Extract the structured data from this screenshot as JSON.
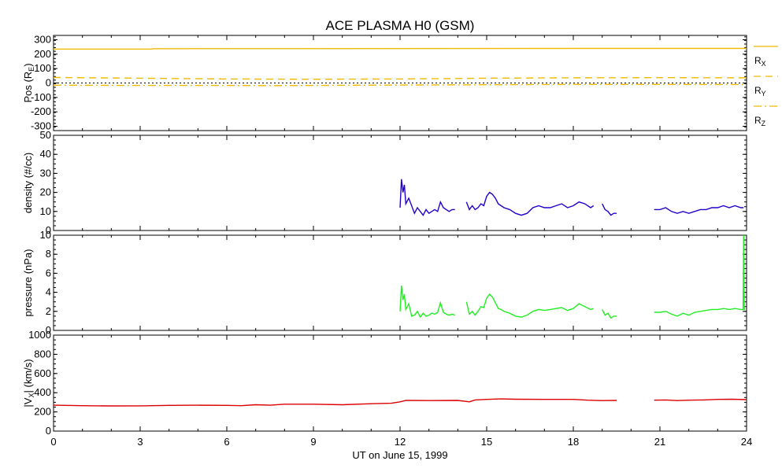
{
  "chart_data": {
    "title": "ACE PLASMA H0 (GSM)",
    "xlabel": "UT on June 15, 1999",
    "type": "line",
    "x_unit": "hours UT",
    "xlim": [
      0,
      24
    ],
    "xticks": [
      "0",
      "3",
      "6",
      "9",
      "12",
      "15",
      "18",
      "21",
      "24"
    ],
    "panels": [
      {
        "id": "position",
        "ylabel": {
          "main": "Pos (R",
          "sub": "E",
          "close": ")"
        },
        "ylim": [
          -330,
          330
        ],
        "yticks": [
          "300",
          "200",
          "100",
          "0",
          "-100",
          "-200",
          "-300"
        ],
        "legend": [
          {
            "base": "R",
            "sub": "X",
            "style": "solid",
            "color": "#f0b800"
          },
          {
            "base": "R",
            "sub": "Y",
            "style": "dashed",
            "color": "#f0b800"
          },
          {
            "base": "R",
            "sub": "Z",
            "style": "dashdot",
            "color": "#f0b800"
          }
        ],
        "series": [
          {
            "name": "RX",
            "color": "#f0b800",
            "style": "solid",
            "x": [
              0,
              3.4,
              3.45,
              12,
              18.5,
              24
            ],
            "y": [
              235,
              235,
              238,
              239,
              240,
              240
            ]
          },
          {
            "name": "RY",
            "color": "#f0b800",
            "style": "dashed",
            "x": [
              0,
              3,
              6,
              9,
              12,
              15,
              18,
              21,
              24
            ],
            "y": [
              38,
              33,
              28,
              26,
              28,
              33,
              36,
              37,
              36
            ]
          },
          {
            "name": "RZ",
            "color": "#f0b800",
            "style": "dashdot",
            "x": [
              0,
              3,
              6,
              7.5,
              9,
              12,
              15,
              18,
              21,
              24
            ],
            "y": [
              -15,
              -17,
              -17,
              -18,
              -17,
              -14,
              -12,
              -10,
              -10,
              -11
            ]
          },
          {
            "name": "zero",
            "color": "#000000",
            "style": "dotted",
            "x": [
              0,
              24
            ],
            "y": [
              0,
              0
            ]
          }
        ]
      },
      {
        "id": "density",
        "ylabel": {
          "main": "density (#/cc)"
        },
        "ylim": [
          0,
          50
        ],
        "yticks": [
          "50",
          "40",
          "30",
          "20",
          "10",
          "0"
        ],
        "series": [
          {
            "name": "density",
            "color": "#2200cc",
            "style": "solid",
            "segments": [
              {
                "x": [
                  12.0,
                  12.05,
                  12.1,
                  12.15,
                  12.2,
                  12.3,
                  12.4,
                  12.5,
                  12.6,
                  12.7,
                  12.8,
                  12.9,
                  13.0,
                  13.1,
                  13.2,
                  13.3,
                  13.4,
                  13.5,
                  13.6,
                  13.7,
                  13.8,
                  13.9
                ],
                "y": [
                  12,
                  27,
                  20,
                  24,
                  14,
                  17,
                  13,
                  9,
                  12,
                  10,
                  8,
                  11,
                  9,
                  10,
                  11,
                  10,
                  15,
                  12,
                  11,
                  10,
                  11,
                  11
                ]
              },
              {
                "x": [
                  14.3,
                  14.4,
                  14.5,
                  14.6,
                  14.7,
                  14.8,
                  14.9,
                  15.0,
                  15.1,
                  15.2,
                  15.3,
                  15.4,
                  15.5,
                  15.6,
                  15.8,
                  16.0,
                  16.2,
                  16.4,
                  16.6,
                  16.8,
                  17.0,
                  17.2,
                  17.4,
                  17.6,
                  17.8,
                  18.0,
                  18.2,
                  18.4,
                  18.6,
                  18.7
                ],
                "y": [
                  15,
                  11,
                  13,
                  11,
                  12,
                  14,
                  13,
                  18,
                  20,
                  19,
                  17,
                  14,
                  13,
                  12,
                  11,
                  9,
                  8,
                  9,
                  12,
                  13,
                  12,
                  12,
                  13,
                  14,
                  12,
                  13,
                  15,
                  14,
                  12,
                  13
                ]
              },
              {
                "x": [
                  19.0,
                  19.1,
                  19.2,
                  19.3,
                  19.4,
                  19.5
                ],
                "y": [
                  14,
                  11,
                  10,
                  8,
                  9,
                  9
                ]
              },
              {
                "x": [
                  20.8,
                  21.0,
                  21.2,
                  21.4,
                  21.6,
                  21.8,
                  22.0,
                  22.2,
                  22.4,
                  22.6,
                  22.8,
                  23.0,
                  23.2,
                  23.4,
                  23.6,
                  23.8,
                  23.9
                ],
                "y": [
                  11,
                  11,
                  12,
                  10,
                  9,
                  10,
                  9,
                  10,
                  11,
                  11,
                  12,
                  12,
                  13,
                  12,
                  13,
                  12,
                  12
                ]
              }
            ]
          }
        ]
      },
      {
        "id": "pressure",
        "ylabel": {
          "main": "pressure (nPa)"
        },
        "ylim": [
          0,
          10
        ],
        "yticks": [
          "10",
          "8",
          "6",
          "4",
          "2",
          "0"
        ],
        "series": [
          {
            "name": "pressure",
            "color": "#22ee22",
            "style": "solid",
            "segments": [
              {
                "x": [
                  12.0,
                  12.05,
                  12.1,
                  12.15,
                  12.2,
                  12.3,
                  12.4,
                  12.5,
                  12.6,
                  12.7,
                  12.8,
                  12.9,
                  13.0,
                  13.1,
                  13.2,
                  13.3,
                  13.4,
                  13.5,
                  13.6,
                  13.7,
                  13.8,
                  13.9
                ],
                "y": [
                  2.0,
                  4.7,
                  3.2,
                  3.8,
                  2.2,
                  2.8,
                  1.5,
                  1.6,
                  2.0,
                  1.4,
                  1.8,
                  1.5,
                  1.6,
                  1.8,
                  1.7,
                  1.9,
                  2.9,
                  1.9,
                  1.7,
                  1.6,
                  1.7,
                  1.6
                ]
              },
              {
                "x": [
                  14.3,
                  14.4,
                  14.5,
                  14.6,
                  14.7,
                  14.8,
                  14.9,
                  15.0,
                  15.1,
                  15.2,
                  15.3,
                  15.4,
                  15.5,
                  15.6,
                  15.8,
                  16.0,
                  16.2,
                  16.4,
                  16.6,
                  16.8,
                  17.0,
                  17.2,
                  17.4,
                  17.6,
                  17.8,
                  18.0,
                  18.2,
                  18.4,
                  18.6,
                  18.7
                ],
                "y": [
                  3.0,
                  1.7,
                  2.0,
                  1.6,
                  2.0,
                  2.5,
                  2.4,
                  3.4,
                  3.8,
                  3.5,
                  2.9,
                  2.3,
                  2.2,
                  2.0,
                  1.8,
                  1.5,
                  1.4,
                  1.6,
                  2.0,
                  2.2,
                  2.1,
                  2.2,
                  2.3,
                  2.4,
                  2.1,
                  2.3,
                  2.8,
                  2.5,
                  2.2,
                  2.3
                ]
              },
              {
                "x": [
                  19.0,
                  19.1,
                  19.2,
                  19.3,
                  19.4,
                  19.5
                ],
                "y": [
                  2.2,
                  1.6,
                  1.8,
                  1.3,
                  1.5,
                  1.5
                ]
              },
              {
                "x": [
                  20.8,
                  21.0,
                  21.2,
                  21.4,
                  21.6,
                  21.8,
                  22.0,
                  22.2,
                  22.4,
                  22.6,
                  22.8,
                  23.0,
                  23.2,
                  23.4,
                  23.6,
                  23.8,
                  23.88,
                  23.9,
                  23.92,
                  23.95
                ],
                "y": [
                  1.9,
                  1.9,
                  2.0,
                  1.7,
                  1.5,
                  1.8,
                  1.6,
                  1.9,
                  2.0,
                  2.1,
                  2.2,
                  2.2,
                  2.3,
                  2.2,
                  2.3,
                  2.2,
                  2.2,
                  10.0,
                  2.2,
                  2.2
                ]
              }
            ]
          }
        ]
      },
      {
        "id": "velocity",
        "ylabel": {
          "main": "|V",
          "sub": "X",
          "close": "| (km/s)"
        },
        "ylim": [
          0,
          1000
        ],
        "yticks": [
          "1000",
          "800",
          "600",
          "400",
          "200",
          "0"
        ],
        "series": [
          {
            "name": "Vx",
            "color": "#dd0000",
            "style": "solid",
            "segments": [
              {
                "x": [
                  0,
                  1,
                  2,
                  3,
                  4,
                  5,
                  6,
                  6.5,
                  7,
                  7.5,
                  8,
                  9,
                  10,
                  11,
                  11.7,
                  12.0,
                  12.2,
                  13,
                  14,
                  14.4,
                  14.6,
                  15,
                  15.5,
                  16,
                  17,
                  18,
                  18.5,
                  19,
                  19.5
                ],
                "y": [
                  270,
                  265,
                  262,
                  263,
                  268,
                  270,
                  268,
                  265,
                  275,
                  270,
                  280,
                  280,
                  275,
                  285,
                  290,
                  305,
                  320,
                  318,
                  320,
                  305,
                  325,
                  330,
                  335,
                  332,
                  330,
                  330,
                  322,
                  318,
                  320
                ]
              },
              {
                "x": [
                  20.8,
                  21.2,
                  21.6,
                  22,
                  22.5,
                  23,
                  23.5,
                  24
                ],
                "y": [
                  322,
                  325,
                  318,
                  322,
                  325,
                  330,
                  332,
                  328
                ]
              }
            ]
          }
        ]
      }
    ]
  }
}
